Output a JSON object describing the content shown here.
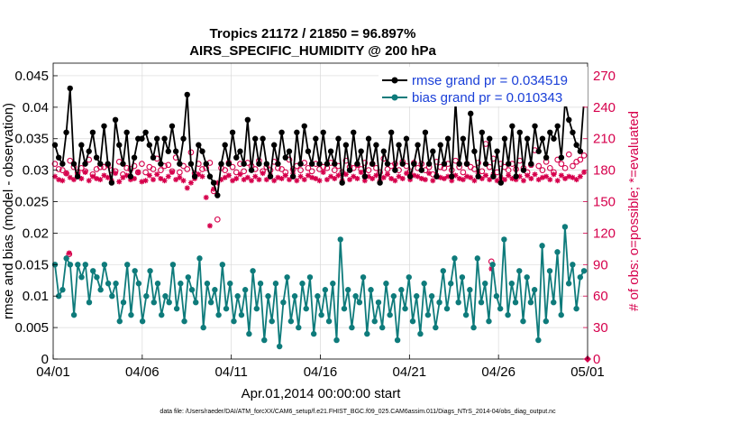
{
  "chart_data": {
    "type": "line",
    "title_line1": "Tropics 21172 / 21850 = 96.897%",
    "title_line2": "AIRS_SPECIFIC_HUMIDITY @ 200 hPa",
    "xlabel": "Apr.01,2014 00:00:00 start",
    "ylabel_left": "rmse and bias (model - observation)",
    "ylabel_right": "# of obs: o=possible; *=evaluated",
    "x_ticks": [
      "04/01",
      "04/06",
      "04/11",
      "04/16",
      "04/21",
      "04/26",
      "05/01"
    ],
    "x_range_days": [
      0,
      30
    ],
    "ylim_left": [
      0,
      0.047
    ],
    "yticks_left": [
      "0",
      "0.005",
      "0.01",
      "0.015",
      "0.02",
      "0.025",
      "0.03",
      "0.035",
      "0.04",
      "0.045"
    ],
    "ylim_right": [
      0,
      282
    ],
    "yticks_right": [
      "0",
      "30",
      "60",
      "90",
      "120",
      "150",
      "180",
      "210",
      "240",
      "270"
    ],
    "footer": "data file: /Users/raeder/DAI/ATM_forcXX/CAM6_setup/f.e21.FHIST_BGC.f09_025.CAM6assim.011/Diags_NTrS_2014-04/obs_diag_output.nc",
    "colors": {
      "rmse": "#000000",
      "bias": "#0e7b7b",
      "obs": "#d6004c"
    },
    "series": [
      {
        "name": "rmse grand pr = 0.034519",
        "axis": "left",
        "marker": "filled-circle",
        "values": [
          0.034,
          0.032,
          0.031,
          0.036,
          0.043,
          0.031,
          0.029,
          0.034,
          0.031,
          0.033,
          0.036,
          0.032,
          0.031,
          0.037,
          0.031,
          0.028,
          0.038,
          0.034,
          0.031,
          0.036,
          0.029,
          0.032,
          0.035,
          0.035,
          0.036,
          0.034,
          0.032,
          0.035,
          0.031,
          0.035,
          0.033,
          0.037,
          0.033,
          0.031,
          0.035,
          0.042,
          0.031,
          0.029,
          0.034,
          0.033,
          0.031,
          0.029,
          0.028,
          0.026,
          0.031,
          0.034,
          0.031,
          0.036,
          0.032,
          0.033,
          0.031,
          0.038,
          0.03,
          0.035,
          0.031,
          0.035,
          0.031,
          0.029,
          0.034,
          0.031,
          0.036,
          0.032,
          0.033,
          0.029,
          0.036,
          0.031,
          0.037,
          0.033,
          0.031,
          0.035,
          0.031,
          0.036,
          0.031,
          0.033,
          0.031,
          0.035,
          0.028,
          0.034,
          0.03,
          0.036,
          0.031,
          0.033,
          0.029,
          0.035,
          0.031,
          0.034,
          0.028,
          0.033,
          0.031,
          0.036,
          0.03,
          0.034,
          0.031,
          0.035,
          0.029,
          0.031,
          0.034,
          0.03,
          0.036,
          0.031,
          0.033,
          0.029,
          0.034,
          0.031,
          0.035,
          0.029,
          0.041,
          0.031,
          0.035,
          0.031,
          0.039,
          0.033,
          0.029,
          0.036,
          0.031,
          0.035,
          0.029,
          0.033,
          0.028,
          0.035,
          0.031,
          0.037,
          0.029,
          0.036,
          0.03,
          0.035,
          0.031,
          0.037,
          0.033,
          0.035,
          0.032,
          0.036,
          0.035,
          0.037,
          0.032,
          0.041,
          0.038,
          0.036,
          0.034,
          0.033,
          0.041
        ]
      },
      {
        "name": "bias grand pr = 0.010343",
        "axis": "left",
        "marker": "filled-circle",
        "values": [
          0.015,
          0.01,
          0.011,
          0.016,
          0.015,
          0.007,
          0.015,
          0.013,
          0.015,
          0.009,
          0.014,
          0.013,
          0.011,
          0.015,
          0.012,
          0.01,
          0.012,
          0.006,
          0.009,
          0.015,
          0.007,
          0.014,
          0.012,
          0.006,
          0.01,
          0.014,
          0.009,
          0.012,
          0.007,
          0.01,
          0.009,
          0.015,
          0.008,
          0.012,
          0.006,
          0.013,
          0.011,
          0.009,
          0.016,
          0.005,
          0.012,
          0.009,
          0.011,
          0.007,
          0.015,
          0.008,
          0.012,
          0.006,
          0.01,
          0.007,
          0.011,
          0.004,
          0.014,
          0.008,
          0.012,
          0.003,
          0.01,
          0.006,
          0.012,
          0.002,
          0.009,
          0.013,
          0.006,
          0.01,
          0.005,
          0.012,
          0.008,
          0.013,
          0.004,
          0.01,
          0.007,
          0.011,
          0.006,
          0.012,
          0.003,
          0.019,
          0.008,
          0.011,
          0.005,
          0.01,
          0.009,
          0.013,
          0.004,
          0.011,
          0.006,
          0.009,
          0.005,
          0.012,
          0.007,
          0.01,
          0.003,
          0.011,
          0.008,
          0.013,
          0.006,
          0.01,
          0.004,
          0.012,
          0.007,
          0.01,
          0.005,
          0.009,
          0.014,
          0.008,
          0.012,
          0.016,
          0.009,
          0.013,
          0.007,
          0.011,
          0.005,
          0.016,
          0.009,
          0.012,
          0.006,
          0.015,
          0.01,
          0.008,
          0.019,
          0.007,
          0.012,
          0.009,
          0.014,
          0.006,
          0.013,
          0.009,
          0.011,
          0.003,
          0.018,
          0.006,
          0.014,
          0.009,
          0.017,
          0.007,
          0.021,
          0.012,
          0.015,
          0.008,
          0.013,
          0.014
        ]
      },
      {
        "name": "obs possible",
        "axis": "right",
        "marker": "circle",
        "values": [
          186,
          181,
          180,
          177,
          189,
          183,
          178,
          182,
          179,
          190,
          176,
          181,
          183,
          183,
          185,
          180,
          179,
          188,
          176,
          182,
          181,
          184,
          178,
          186,
          178,
          183,
          181,
          191,
          180,
          184,
          185,
          179,
          192,
          178,
          184,
          181,
          197,
          177,
          186,
          181,
          182,
          187,
          160,
          133,
          182,
          180,
          187,
          183,
          178,
          186,
          179,
          187,
          184,
          181,
          189,
          179,
          183,
          180,
          188,
          182,
          181,
          178,
          190,
          181,
          184,
          180,
          187,
          182,
          179,
          186,
          181,
          183,
          182,
          187,
          180,
          184,
          178,
          189,
          183,
          182,
          185,
          181,
          187,
          180,
          186,
          182,
          178,
          191,
          181,
          184,
          186,
          180,
          188,
          184,
          179,
          187,
          182,
          186,
          180,
          183,
          176,
          188,
          183,
          182,
          186,
          180,
          189,
          183,
          178,
          186,
          183,
          181,
          187,
          179,
          205,
          183,
          191,
          178,
          186,
          183,
          180,
          186,
          181,
          189,
          182,
          178,
          185,
          199,
          184,
          180,
          188,
          182,
          178,
          190,
          186,
          182,
          195,
          184,
          188,
          190,
          194
        ]
      },
      {
        "name": "obs evaluated",
        "axis": "right",
        "marker": "asterisk",
        "values": [
          174,
          171,
          170,
          177,
          173,
          171,
          176,
          172,
          178,
          170,
          174,
          172,
          171,
          175,
          173,
          170,
          177,
          169,
          173,
          175,
          171,
          172,
          178,
          169,
          170,
          175,
          171,
          176,
          172,
          170,
          174,
          178,
          171,
          173,
          170,
          163,
          168,
          172,
          176,
          174,
          154,
          127,
          162,
          168,
          171,
          173,
          175,
          170,
          172,
          176,
          171,
          173,
          170,
          174,
          171,
          177,
          171,
          175,
          170,
          173,
          172,
          175,
          171,
          177,
          170,
          174,
          171,
          175,
          173,
          172,
          170,
          178,
          171,
          174,
          172,
          175,
          170,
          176,
          171,
          174,
          172,
          178,
          170,
          174,
          172,
          175,
          170,
          173,
          176,
          172,
          170,
          174,
          172,
          177,
          171,
          175,
          174,
          172,
          171,
          177,
          170,
          175,
          173,
          172,
          174,
          170,
          175,
          172,
          171,
          174,
          173,
          170,
          177,
          172,
          175,
          171,
          176,
          170,
          173,
          171,
          175,
          172,
          171,
          174,
          170,
          175,
          172,
          176,
          171,
          173,
          174,
          171,
          176,
          170,
          175,
          172,
          174,
          173,
          171,
          174,
          178
        ]
      }
    ],
    "extra_obs_points": [
      {
        "series": "obs possible",
        "day": 0.9,
        "value": 100
      },
      {
        "series": "obs evaluated",
        "day": 0.9,
        "value": 101
      },
      {
        "series": "obs possible",
        "day": 24.6,
        "value": 93
      },
      {
        "series": "obs evaluated",
        "day": 24.6,
        "value": 86
      }
    ],
    "legend": {
      "position": "top-right",
      "entries": [
        "rmse grand pr = 0.034519",
        "bias grand pr = 0.010343"
      ]
    }
  }
}
